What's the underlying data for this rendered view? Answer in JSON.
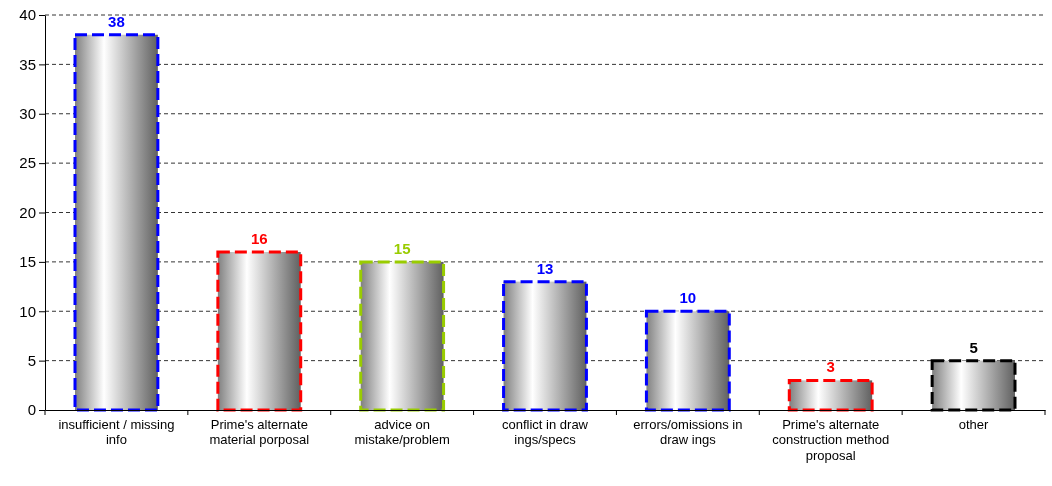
{
  "chart_data": {
    "type": "bar",
    "categories": [
      "insufficient / missing info",
      "Prime's alternate material porposal",
      "advice on mistake/problem",
      "conflict in draw ings/specs",
      "errors/omissions in draw ings",
      "Prime's alternate construction method proposal",
      "other"
    ],
    "values": [
      38,
      16,
      15,
      13,
      10,
      3,
      5
    ],
    "colors": [
      "#0000ff",
      "#ff0000",
      "#99cc00",
      "#0000ff",
      "#0000ff",
      "#ff0000",
      "#000000"
    ],
    "ylim": [
      0,
      40
    ],
    "yticks": [
      0,
      5,
      10,
      15,
      20,
      25,
      30,
      35,
      40
    ],
    "grid": "y",
    "data_labels": true,
    "line_style": "dashed"
  }
}
